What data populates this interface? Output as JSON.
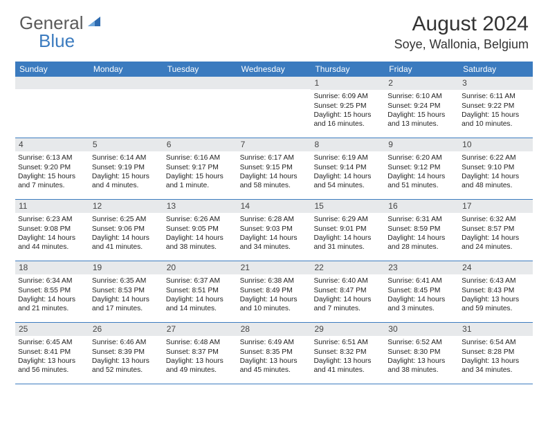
{
  "logo": {
    "general": "General",
    "blue": "Blue"
  },
  "title": "August 2024",
  "location": "Soye, Wallonia, Belgium",
  "colors": {
    "header_bar": "#3b7bbf",
    "daynum_bg": "#e7e9eb",
    "text": "#222222",
    "logo_gray": "#5a5a5a",
    "logo_blue": "#3b7bbf"
  },
  "weekdays": [
    "Sunday",
    "Monday",
    "Tuesday",
    "Wednesday",
    "Thursday",
    "Friday",
    "Saturday"
  ],
  "weeks": [
    [
      {
        "n": "",
        "sr": "",
        "ss": "",
        "d1": "",
        "d2": ""
      },
      {
        "n": "",
        "sr": "",
        "ss": "",
        "d1": "",
        "d2": ""
      },
      {
        "n": "",
        "sr": "",
        "ss": "",
        "d1": "",
        "d2": ""
      },
      {
        "n": "",
        "sr": "",
        "ss": "",
        "d1": "",
        "d2": ""
      },
      {
        "n": "1",
        "sr": "Sunrise: 6:09 AM",
        "ss": "Sunset: 9:25 PM",
        "d1": "Daylight: 15 hours",
        "d2": "and 16 minutes."
      },
      {
        "n": "2",
        "sr": "Sunrise: 6:10 AM",
        "ss": "Sunset: 9:24 PM",
        "d1": "Daylight: 15 hours",
        "d2": "and 13 minutes."
      },
      {
        "n": "3",
        "sr": "Sunrise: 6:11 AM",
        "ss": "Sunset: 9:22 PM",
        "d1": "Daylight: 15 hours",
        "d2": "and 10 minutes."
      }
    ],
    [
      {
        "n": "4",
        "sr": "Sunrise: 6:13 AM",
        "ss": "Sunset: 9:20 PM",
        "d1": "Daylight: 15 hours",
        "d2": "and 7 minutes."
      },
      {
        "n": "5",
        "sr": "Sunrise: 6:14 AM",
        "ss": "Sunset: 9:19 PM",
        "d1": "Daylight: 15 hours",
        "d2": "and 4 minutes."
      },
      {
        "n": "6",
        "sr": "Sunrise: 6:16 AM",
        "ss": "Sunset: 9:17 PM",
        "d1": "Daylight: 15 hours",
        "d2": "and 1 minute."
      },
      {
        "n": "7",
        "sr": "Sunrise: 6:17 AM",
        "ss": "Sunset: 9:15 PM",
        "d1": "Daylight: 14 hours",
        "d2": "and 58 minutes."
      },
      {
        "n": "8",
        "sr": "Sunrise: 6:19 AM",
        "ss": "Sunset: 9:14 PM",
        "d1": "Daylight: 14 hours",
        "d2": "and 54 minutes."
      },
      {
        "n": "9",
        "sr": "Sunrise: 6:20 AM",
        "ss": "Sunset: 9:12 PM",
        "d1": "Daylight: 14 hours",
        "d2": "and 51 minutes."
      },
      {
        "n": "10",
        "sr": "Sunrise: 6:22 AM",
        "ss": "Sunset: 9:10 PM",
        "d1": "Daylight: 14 hours",
        "d2": "and 48 minutes."
      }
    ],
    [
      {
        "n": "11",
        "sr": "Sunrise: 6:23 AM",
        "ss": "Sunset: 9:08 PM",
        "d1": "Daylight: 14 hours",
        "d2": "and 44 minutes."
      },
      {
        "n": "12",
        "sr": "Sunrise: 6:25 AM",
        "ss": "Sunset: 9:06 PM",
        "d1": "Daylight: 14 hours",
        "d2": "and 41 minutes."
      },
      {
        "n": "13",
        "sr": "Sunrise: 6:26 AM",
        "ss": "Sunset: 9:05 PM",
        "d1": "Daylight: 14 hours",
        "d2": "and 38 minutes."
      },
      {
        "n": "14",
        "sr": "Sunrise: 6:28 AM",
        "ss": "Sunset: 9:03 PM",
        "d1": "Daylight: 14 hours",
        "d2": "and 34 minutes."
      },
      {
        "n": "15",
        "sr": "Sunrise: 6:29 AM",
        "ss": "Sunset: 9:01 PM",
        "d1": "Daylight: 14 hours",
        "d2": "and 31 minutes."
      },
      {
        "n": "16",
        "sr": "Sunrise: 6:31 AM",
        "ss": "Sunset: 8:59 PM",
        "d1": "Daylight: 14 hours",
        "d2": "and 28 minutes."
      },
      {
        "n": "17",
        "sr": "Sunrise: 6:32 AM",
        "ss": "Sunset: 8:57 PM",
        "d1": "Daylight: 14 hours",
        "d2": "and 24 minutes."
      }
    ],
    [
      {
        "n": "18",
        "sr": "Sunrise: 6:34 AM",
        "ss": "Sunset: 8:55 PM",
        "d1": "Daylight: 14 hours",
        "d2": "and 21 minutes."
      },
      {
        "n": "19",
        "sr": "Sunrise: 6:35 AM",
        "ss": "Sunset: 8:53 PM",
        "d1": "Daylight: 14 hours",
        "d2": "and 17 minutes."
      },
      {
        "n": "20",
        "sr": "Sunrise: 6:37 AM",
        "ss": "Sunset: 8:51 PM",
        "d1": "Daylight: 14 hours",
        "d2": "and 14 minutes."
      },
      {
        "n": "21",
        "sr": "Sunrise: 6:38 AM",
        "ss": "Sunset: 8:49 PM",
        "d1": "Daylight: 14 hours",
        "d2": "and 10 minutes."
      },
      {
        "n": "22",
        "sr": "Sunrise: 6:40 AM",
        "ss": "Sunset: 8:47 PM",
        "d1": "Daylight: 14 hours",
        "d2": "and 7 minutes."
      },
      {
        "n": "23",
        "sr": "Sunrise: 6:41 AM",
        "ss": "Sunset: 8:45 PM",
        "d1": "Daylight: 14 hours",
        "d2": "and 3 minutes."
      },
      {
        "n": "24",
        "sr": "Sunrise: 6:43 AM",
        "ss": "Sunset: 8:43 PM",
        "d1": "Daylight: 13 hours",
        "d2": "and 59 minutes."
      }
    ],
    [
      {
        "n": "25",
        "sr": "Sunrise: 6:45 AM",
        "ss": "Sunset: 8:41 PM",
        "d1": "Daylight: 13 hours",
        "d2": "and 56 minutes."
      },
      {
        "n": "26",
        "sr": "Sunrise: 6:46 AM",
        "ss": "Sunset: 8:39 PM",
        "d1": "Daylight: 13 hours",
        "d2": "and 52 minutes."
      },
      {
        "n": "27",
        "sr": "Sunrise: 6:48 AM",
        "ss": "Sunset: 8:37 PM",
        "d1": "Daylight: 13 hours",
        "d2": "and 49 minutes."
      },
      {
        "n": "28",
        "sr": "Sunrise: 6:49 AM",
        "ss": "Sunset: 8:35 PM",
        "d1": "Daylight: 13 hours",
        "d2": "and 45 minutes."
      },
      {
        "n": "29",
        "sr": "Sunrise: 6:51 AM",
        "ss": "Sunset: 8:32 PM",
        "d1": "Daylight: 13 hours",
        "d2": "and 41 minutes."
      },
      {
        "n": "30",
        "sr": "Sunrise: 6:52 AM",
        "ss": "Sunset: 8:30 PM",
        "d1": "Daylight: 13 hours",
        "d2": "and 38 minutes."
      },
      {
        "n": "31",
        "sr": "Sunrise: 6:54 AM",
        "ss": "Sunset: 8:28 PM",
        "d1": "Daylight: 13 hours",
        "d2": "and 34 minutes."
      }
    ]
  ]
}
